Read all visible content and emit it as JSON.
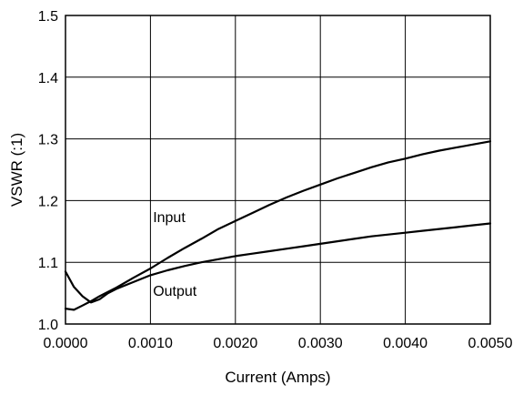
{
  "chart_data": {
    "type": "line",
    "title": "",
    "xlabel": "Current (Amps)",
    "ylabel": "VSWR (:1)",
    "xlim": [
      0.0,
      0.005
    ],
    "ylim": [
      1.0,
      1.5
    ],
    "x_ticks": [
      0.0,
      0.001,
      0.002,
      0.003,
      0.004,
      0.005
    ],
    "x_tick_labels": [
      "0.0000",
      "0.0010",
      "0.0020",
      "0.0030",
      "0.0040",
      "0.0050"
    ],
    "y_ticks": [
      1.0,
      1.1,
      1.2,
      1.3,
      1.4,
      1.5
    ],
    "y_tick_labels": [
      "1.0",
      "1.1",
      "1.2",
      "1.3",
      "1.4",
      "1.5"
    ],
    "grid": true,
    "legend": "none",
    "line_color": "#000000",
    "series": [
      {
        "name": "Input",
        "points": [
          [
            0.0,
            1.025
          ],
          [
            0.0001,
            1.023
          ],
          [
            0.0002,
            1.03
          ],
          [
            0.0003,
            1.037
          ],
          [
            0.0004,
            1.045
          ],
          [
            0.0005,
            1.052
          ],
          [
            0.0006,
            1.059
          ],
          [
            0.0008,
            1.075
          ],
          [
            0.001,
            1.09
          ],
          [
            0.0012,
            1.107
          ],
          [
            0.0014,
            1.123
          ],
          [
            0.0016,
            1.138
          ],
          [
            0.0018,
            1.154
          ],
          [
            0.002,
            1.167
          ],
          [
            0.0022,
            1.18
          ],
          [
            0.0024,
            1.193
          ],
          [
            0.0026,
            1.205
          ],
          [
            0.0028,
            1.216
          ],
          [
            0.003,
            1.226
          ],
          [
            0.0032,
            1.236
          ],
          [
            0.0034,
            1.245
          ],
          [
            0.0036,
            1.254
          ],
          [
            0.0038,
            1.262
          ],
          [
            0.004,
            1.268
          ],
          [
            0.0042,
            1.275
          ],
          [
            0.0044,
            1.281
          ],
          [
            0.0046,
            1.286
          ],
          [
            0.0048,
            1.291
          ],
          [
            0.005,
            1.296
          ]
        ]
      },
      {
        "name": "Output",
        "points": [
          [
            0.0,
            1.085
          ],
          [
            0.0001,
            1.06
          ],
          [
            0.0002,
            1.045
          ],
          [
            0.0003,
            1.035
          ],
          [
            0.0004,
            1.04
          ],
          [
            0.0005,
            1.05
          ],
          [
            0.0006,
            1.057
          ],
          [
            0.0008,
            1.068
          ],
          [
            0.001,
            1.079
          ],
          [
            0.0012,
            1.087
          ],
          [
            0.0014,
            1.094
          ],
          [
            0.0016,
            1.1
          ],
          [
            0.0018,
            1.105
          ],
          [
            0.002,
            1.11
          ],
          [
            0.0022,
            1.114
          ],
          [
            0.0024,
            1.118
          ],
          [
            0.0026,
            1.122
          ],
          [
            0.0028,
            1.126
          ],
          [
            0.003,
            1.13
          ],
          [
            0.0032,
            1.134
          ],
          [
            0.0034,
            1.138
          ],
          [
            0.0036,
            1.142
          ],
          [
            0.0038,
            1.145
          ],
          [
            0.004,
            1.148
          ],
          [
            0.0042,
            1.151
          ],
          [
            0.0044,
            1.154
          ],
          [
            0.0046,
            1.157
          ],
          [
            0.0048,
            1.16
          ],
          [
            0.005,
            1.163
          ]
        ]
      }
    ],
    "annotations": [
      {
        "text": "Input",
        "x": 0.00103,
        "y": 1.165
      },
      {
        "text": "Output",
        "x": 0.00103,
        "y": 1.046
      }
    ]
  }
}
